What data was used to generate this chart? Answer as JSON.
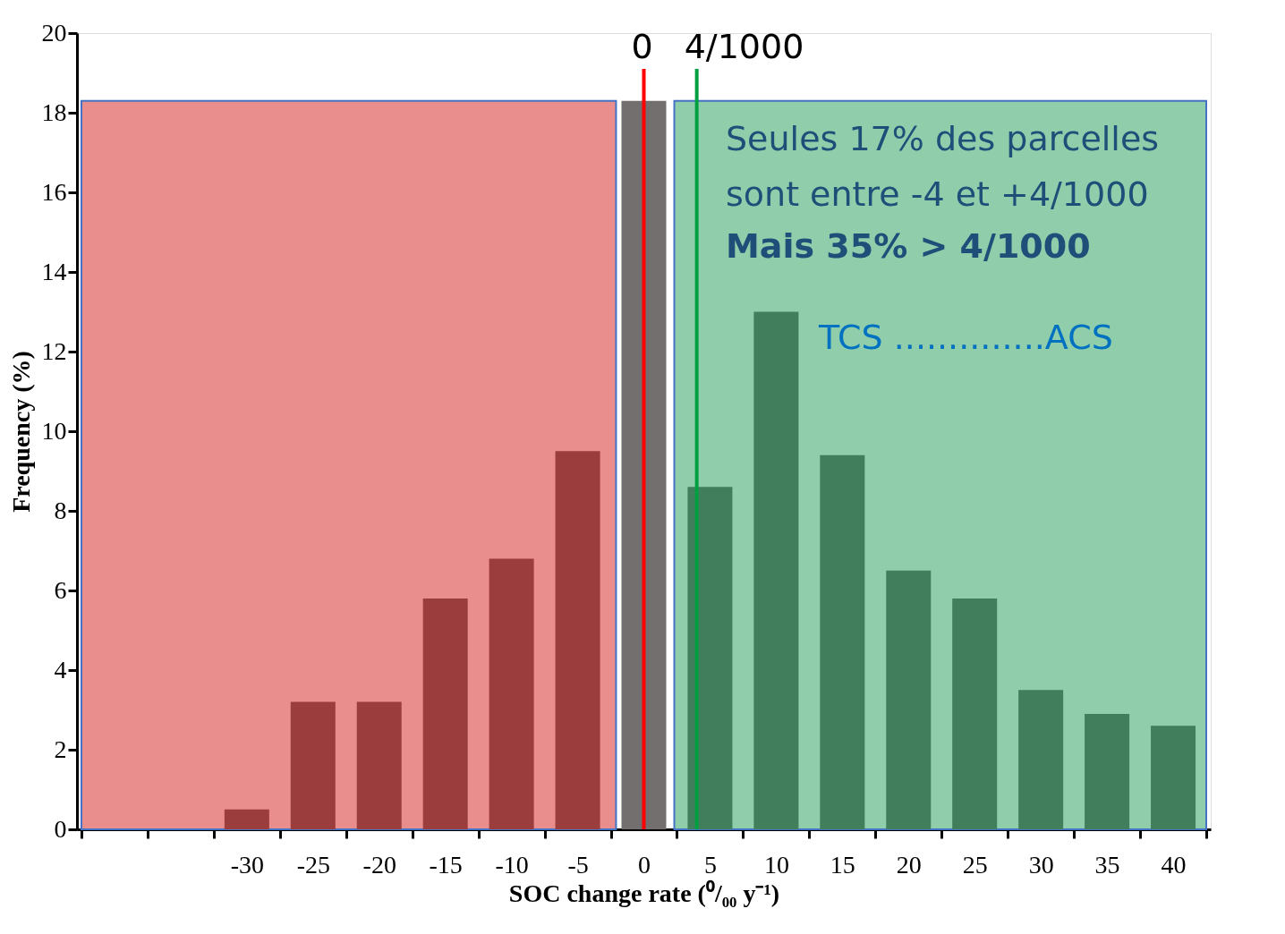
{
  "chart_data": {
    "type": "bar",
    "xlabel": "SOC change rate (⁰/₀₀ y⁻¹)",
    "ylabel": "Frequency (%)",
    "x": [
      -30,
      -25,
      -20,
      -15,
      -10,
      -5,
      0,
      5,
      10,
      15,
      20,
      25,
      30,
      35,
      40
    ],
    "values": [
      0.5,
      3.2,
      3.2,
      5.8,
      6.8,
      9.5,
      18.3,
      8.6,
      13.0,
      9.4,
      6.5,
      5.8,
      3.5,
      2.9,
      2.6
    ],
    "colors": [
      "#9b3d3d",
      "#9b3d3d",
      "#9b3d3d",
      "#9b3d3d",
      "#9b3d3d",
      "#9b3d3d",
      "#736f6f",
      "#417f5c",
      "#417f5c",
      "#417f5c",
      "#417f5c",
      "#417f5c",
      "#417f5c",
      "#417f5c",
      "#417f5c"
    ],
    "xlim": [
      -42.5,
      42.5
    ],
    "xticks": [
      {
        "value": -42.5,
        "label": null
      },
      {
        "value": -37.5,
        "label": null
      },
      {
        "value": -32.5,
        "label": null
      },
      {
        "value": -27.5,
        "label": null
      },
      {
        "value": -22.5,
        "label": null
      },
      {
        "value": -17.5,
        "label": null
      },
      {
        "value": -12.5,
        "label": null
      },
      {
        "value": -7.5,
        "label": null
      },
      {
        "value": -2.5,
        "label": null
      },
      {
        "value": 2.5,
        "label": null
      },
      {
        "value": 7.5,
        "label": null
      },
      {
        "value": 12.5,
        "label": null
      },
      {
        "value": 17.5,
        "label": null
      },
      {
        "value": 22.5,
        "label": null
      },
      {
        "value": 27.5,
        "label": null
      },
      {
        "value": 32.5,
        "label": null
      },
      {
        "value": 37.5,
        "label": null
      },
      {
        "value": 42.5,
        "label": null
      },
      -30,
      -25,
      -20,
      -15,
      -10,
      -5,
      0,
      5,
      10,
      15,
      20,
      25,
      30,
      35,
      40
    ],
    "ylim": [
      0,
      20
    ],
    "yticks": [
      0,
      2,
      4,
      6,
      8,
      10,
      12,
      14,
      16,
      18,
      20
    ],
    "bands": [
      {
        "axis": "x",
        "from": -42.5,
        "to": -2.1,
        "color": "#e98e8c"
      },
      {
        "axis": "x",
        "from": 2.3,
        "to": 42.5,
        "color": "#8fcdab"
      }
    ],
    "ref_lines": [
      {
        "axis": "x",
        "value": 0,
        "label": "0",
        "color": "#ff0000"
      },
      {
        "axis": "x",
        "value": 4,
        "label": "4/1000",
        "color": "#00a040"
      }
    ],
    "annotations": [
      "Seules 17% des parcelles",
      "sont entre -4 et +4/1000",
      "Mais 35% > 4/1000",
      "TCS ..............ACS"
    ],
    "grid": false
  }
}
